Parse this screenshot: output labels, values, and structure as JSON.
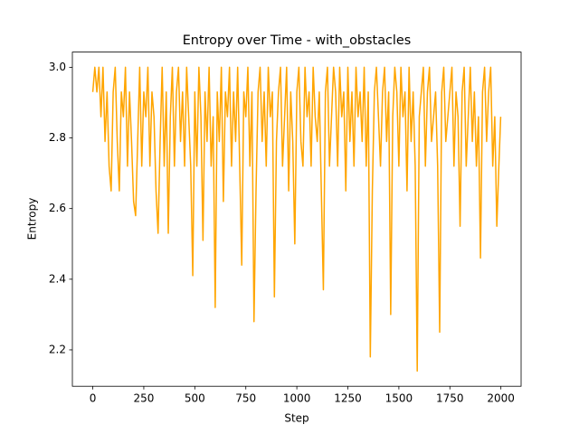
{
  "chart_data": {
    "type": "line",
    "title": "Entropy over Time - with_obstacles",
    "xlabel": "Step",
    "ylabel": "Entropy",
    "xlim": [
      -100,
      2099
    ],
    "ylim": [
      2.097,
      3.043
    ],
    "xticks": [
      0,
      250,
      500,
      750,
      1000,
      1250,
      1500,
      1750,
      2000
    ],
    "yticks": [
      2.2,
      2.4,
      2.6,
      2.8,
      {
        "value": 3,
        "label": "3.0"
      }
    ],
    "grid": false,
    "series": [
      {
        "color": "#ffa500",
        "x": [
          0,
          10,
          20,
          30,
          40,
          50,
          60,
          70,
          80,
          90,
          100,
          110,
          120,
          130,
          140,
          150,
          160,
          170,
          180,
          190,
          200,
          210,
          220,
          230,
          240,
          250,
          260,
          270,
          280,
          290,
          300,
          310,
          320,
          330,
          340,
          350,
          360,
          370,
          380,
          390,
          400,
          410,
          420,
          430,
          440,
          450,
          460,
          470,
          480,
          490,
          500,
          510,
          520,
          530,
          540,
          550,
          560,
          570,
          580,
          590,
          600,
          610,
          620,
          630,
          640,
          650,
          660,
          670,
          680,
          690,
          700,
          710,
          720,
          730,
          740,
          750,
          760,
          770,
          780,
          790,
          800,
          810,
          820,
          830,
          840,
          850,
          860,
          870,
          880,
          890,
          900,
          910,
          920,
          930,
          940,
          950,
          960,
          970,
          980,
          990,
          1000,
          1010,
          1020,
          1030,
          1040,
          1050,
          1060,
          1070,
          1080,
          1090,
          1100,
          1110,
          1120,
          1130,
          1140,
          1150,
          1160,
          1170,
          1180,
          1190,
          1200,
          1210,
          1220,
          1230,
          1240,
          1250,
          1260,
          1270,
          1280,
          1290,
          1300,
          1310,
          1320,
          1330,
          1340,
          1350,
          1360,
          1370,
          1380,
          1390,
          1400,
          1410,
          1420,
          1430,
          1440,
          1450,
          1460,
          1470,
          1480,
          1490,
          1500,
          1510,
          1520,
          1530,
          1540,
          1550,
          1560,
          1570,
          1580,
          1590,
          1600,
          1610,
          1620,
          1630,
          1640,
          1650,
          1660,
          1670,
          1680,
          1690,
          1700,
          1710,
          1720,
          1730,
          1740,
          1750,
          1760,
          1770,
          1780,
          1790,
          1800,
          1810,
          1820,
          1830,
          1840,
          1850,
          1860,
          1870,
          1880,
          1890,
          1900,
          1910,
          1920,
          1930,
          1940,
          1950,
          1960,
          1970,
          1980,
          1990,
          1999
        ],
        "values": [
          2.93,
          3.0,
          2.93,
          3.0,
          2.86,
          3.0,
          2.79,
          2.93,
          2.72,
          2.65,
          2.93,
          3.0,
          2.79,
          2.65,
          2.93,
          2.86,
          3.0,
          2.72,
          2.93,
          2.79,
          2.62,
          2.58,
          2.79,
          3.0,
          2.72,
          2.93,
          2.86,
          3.0,
          2.72,
          2.93,
          2.86,
          2.65,
          2.53,
          2.79,
          3.0,
          2.72,
          2.93,
          2.53,
          2.86,
          3.0,
          2.72,
          2.93,
          3.0,
          2.79,
          2.93,
          2.72,
          3.0,
          2.86,
          2.72,
          2.41,
          2.93,
          2.72,
          3.0,
          2.86,
          2.51,
          2.93,
          2.79,
          3.0,
          2.72,
          2.86,
          2.32,
          2.93,
          2.79,
          3.0,
          2.62,
          2.93,
          2.86,
          3.0,
          2.72,
          2.93,
          2.79,
          3.0,
          2.72,
          2.44,
          2.93,
          2.86,
          3.0,
          2.72,
          2.93,
          2.28,
          2.65,
          2.93,
          3.0,
          2.79,
          2.93,
          2.72,
          3.0,
          2.86,
          2.93,
          2.35,
          2.79,
          2.93,
          3.0,
          2.72,
          2.86,
          3.0,
          2.65,
          2.93,
          2.79,
          2.5,
          2.93,
          3.0,
          2.79,
          2.72,
          3.0,
          2.86,
          2.93,
          2.72,
          3.0,
          2.86,
          2.79,
          2.93,
          2.65,
          2.37,
          2.93,
          3.0,
          2.72,
          2.86,
          3.0,
          2.93,
          2.72,
          3.0,
          2.86,
          2.93,
          2.65,
          3.0,
          2.79,
          2.93,
          2.72,
          3.0,
          2.86,
          2.93,
          2.79,
          3.0,
          2.72,
          2.93,
          2.18,
          2.65,
          2.93,
          3.0,
          2.86,
          2.72,
          2.93,
          3.0,
          2.79,
          2.93,
          2.3,
          2.86,
          3.0,
          2.93,
          2.72,
          3.0,
          2.86,
          2.93,
          2.65,
          3.0,
          2.79,
          2.93,
          2.72,
          2.14,
          2.86,
          2.93,
          3.0,
          2.72,
          2.93,
          3.0,
          2.79,
          2.86,
          2.93,
          2.72,
          2.25,
          2.93,
          3.0,
          2.79,
          2.86,
          2.93,
          3.0,
          2.72,
          2.93,
          2.86,
          2.55,
          2.93,
          3.0,
          2.72,
          2.86,
          3.0,
          2.79,
          2.93,
          2.72,
          2.86,
          2.46,
          2.93,
          3.0,
          2.79,
          2.93,
          3.0,
          2.72,
          2.86,
          2.55,
          2.72,
          2.86
        ]
      }
    ]
  }
}
